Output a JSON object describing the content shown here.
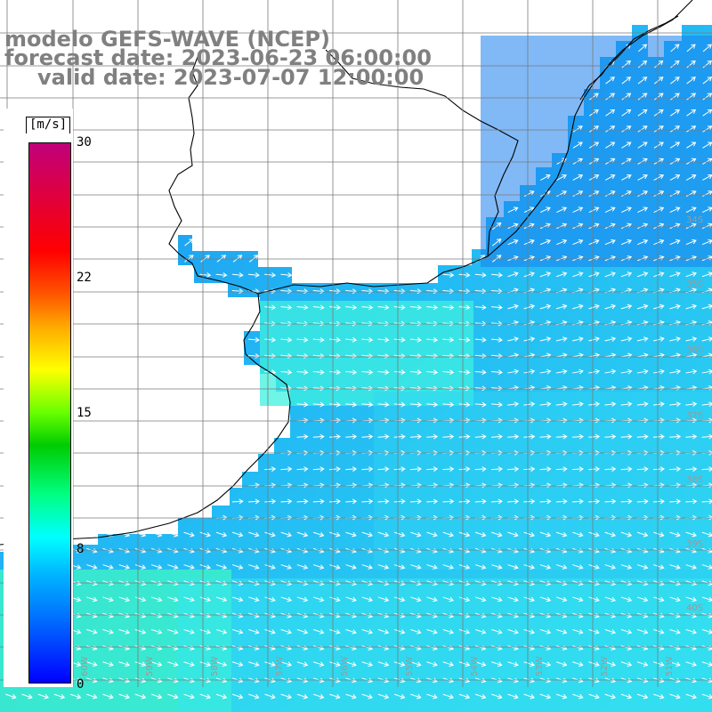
{
  "titles": {
    "model": "modelo GEFS-WAVE (NCEP)",
    "forecast": "forecast date: 2023-06-23 06:00:00",
    "valid": "valid date: 2023-07-07 12:00:00"
  },
  "colorbar": {
    "units": "[m/s]",
    "labels": [
      "30",
      "22",
      "15",
      "8",
      "0"
    ],
    "min": 0,
    "max": 30
  },
  "grid": {
    "lon_labels": [
      "61W",
      "60W",
      "59W",
      "58W",
      "57W",
      "56W",
      "55W",
      "54W",
      "53W",
      "52W",
      "51W"
    ],
    "lat_labels": [
      "34S",
      "35S",
      "36S",
      "37S",
      "38S",
      "39S",
      "40S"
    ]
  },
  "colors": {
    "ocean_light": "#3ef0ee",
    "ocean_cyan": "#2cd6f2",
    "ocean_blue": "#1d92f2",
    "ocean_deep": "#1a7ff0",
    "ocean_green": "#3ff2c4",
    "land": "#ffffff",
    "coast": "#000000",
    "grid": "#7a7a7a",
    "arrow": "#ffffff",
    "title": "#808080"
  }
}
